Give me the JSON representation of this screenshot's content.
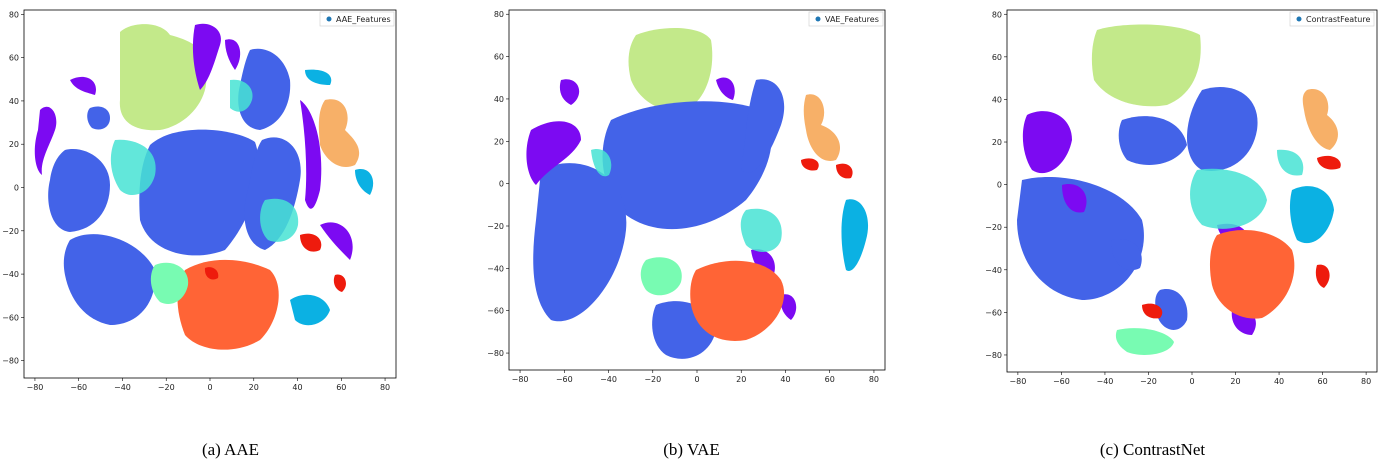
{
  "panels": [
    {
      "caption": "(a) AAE",
      "legend": "AAE_Features",
      "xticks": [
        "−80",
        "−60",
        "−40",
        "−20",
        "0",
        "20",
        "40",
        "60",
        "80"
      ],
      "yticks": [
        "80",
        "60",
        "40",
        "20",
        "0",
        "−20",
        "−40",
        "−60",
        "−80"
      ]
    },
    {
      "caption": "(b) VAE",
      "legend": "VAE_Features",
      "xticks": [
        "−80",
        "−60",
        "−40",
        "−20",
        "0",
        "20",
        "40",
        "60",
        "80"
      ],
      "yticks": [
        "80",
        "60",
        "40",
        "20",
        "0",
        "−20",
        "−40",
        "−60",
        "−80"
      ]
    },
    {
      "caption": "(c) ContrastNet",
      "legend": "ContrastFeature",
      "xticks": [
        "−80",
        "−60",
        "−40",
        "−20",
        "0",
        "20",
        "40",
        "60",
        "80"
      ],
      "yticks": [
        "80",
        "60",
        "40",
        "20",
        "0",
        "−20",
        "−40",
        "−60",
        "−80"
      ]
    }
  ],
  "chart_data": [
    {
      "type": "scatter",
      "title": "",
      "xlabel": "",
      "ylabel": "",
      "xlim": [
        -85,
        85
      ],
      "ylim": [
        -88,
        82
      ],
      "legend": [
        "AAE_Features"
      ],
      "legend_position": "top-right",
      "colors": [
        "#4363e8",
        "#c3e98a",
        "#7c0af2",
        "#47e3d4",
        "#f7b068",
        "#ff6436",
        "#ee1b0d",
        "#78fbb2",
        "#0bb1e3"
      ],
      "clusters": [
        {
          "color": "#c3e98a",
          "x": [
            -40,
            -5
          ],
          "y": [
            38,
            78
          ]
        },
        {
          "color": "#4363e8",
          "x": [
            -35,
            25
          ],
          "y": [
            -30,
            28
          ]
        },
        {
          "color": "#4363e8",
          "x": [
            -70,
            -40
          ],
          "y": [
            -30,
            18
          ]
        },
        {
          "color": "#4363e8",
          "x": [
            -70,
            -25
          ],
          "y": [
            -65,
            -20
          ]
        },
        {
          "color": "#7c0af2",
          "x": [
            -80,
            -45
          ],
          "y": [
            10,
            55
          ]
        },
        {
          "color": "#7c0af2",
          "x": [
            5,
            50
          ],
          "y": [
            25,
            75
          ]
        },
        {
          "color": "#47e3d4",
          "x": [
            -45,
            -20
          ],
          "y": [
            -10,
            20
          ]
        },
        {
          "color": "#f7b068",
          "x": [
            55,
            75
          ],
          "y": [
            10,
            45
          ]
        },
        {
          "color": "#ff6436",
          "x": [
            -15,
            50
          ],
          "y": [
            -82,
            -35
          ]
        },
        {
          "color": "#78fbb2",
          "x": [
            -30,
            -10
          ],
          "y": [
            -65,
            -35
          ]
        },
        {
          "color": "#0bb1e3",
          "x": [
            40,
            62
          ],
          "y": [
            -70,
            -50
          ]
        },
        {
          "color": "#ee1b0d",
          "x": [
            40,
            70
          ],
          "y": [
            -50,
            -30
          ]
        }
      ]
    },
    {
      "type": "scatter",
      "title": "",
      "xlabel": "",
      "ylabel": "",
      "xlim": [
        -85,
        85
      ],
      "ylim": [
        -88,
        82
      ],
      "legend": [
        "VAE_Features"
      ],
      "legend_position": "top-right",
      "colors": [
        "#4363e8",
        "#c3e98a",
        "#7c0af2",
        "#47e3d4",
        "#f7b068",
        "#ff6436",
        "#ee1b0d",
        "#78fbb2",
        "#0bb1e3"
      ],
      "clusters": [
        {
          "color": "#c3e98a",
          "x": [
            -30,
            15
          ],
          "y": [
            48,
            78
          ]
        },
        {
          "color": "#4363e8",
          "x": [
            -55,
            50
          ],
          "y": [
            -60,
            45
          ]
        },
        {
          "color": "#7c0af2",
          "x": [
            -80,
            -35
          ],
          "y": [
            -10,
            45
          ]
        },
        {
          "color": "#47e3d4",
          "x": [
            -60,
            -30
          ],
          "y": [
            -30,
            40
          ]
        },
        {
          "color": "#f7b068",
          "x": [
            58,
            80
          ],
          "y": [
            15,
            50
          ]
        },
        {
          "color": "#ff6436",
          "x": [
            0,
            48
          ],
          "y": [
            -70,
            -35
          ]
        },
        {
          "color": "#78fbb2",
          "x": [
            -30,
            -5
          ],
          "y": [
            -55,
            -35
          ]
        },
        {
          "color": "#0bb1e3",
          "x": [
            60,
            80
          ],
          "y": [
            -50,
            10
          ]
        },
        {
          "color": "#ee1b0d",
          "x": [
            60,
            85
          ],
          "y": [
            5,
            20
          ]
        }
      ]
    },
    {
      "type": "scatter",
      "title": "",
      "xlabel": "",
      "ylabel": "",
      "xlim": [
        -85,
        85
      ],
      "ylim": [
        -88,
        82
      ],
      "legend": [
        "ContrastFeature"
      ],
      "legend_position": "top-right",
      "colors": [
        "#4363e8",
        "#c3e98a",
        "#7c0af2",
        "#47e3d4",
        "#f7b068",
        "#ff6436",
        "#ee1b0d",
        "#78fbb2",
        "#0bb1e3"
      ],
      "clusters": [
        {
          "color": "#c3e98a",
          "x": [
            -45,
            5
          ],
          "y": [
            45,
            80
          ]
        },
        {
          "color": "#4363e8",
          "x": [
            -70,
            50
          ],
          "y": [
            -65,
            50
          ]
        },
        {
          "color": "#7c0af2",
          "x": [
            -70,
            -30
          ],
          "y": [
            -10,
            40
          ]
        },
        {
          "color": "#47e3d4",
          "x": [
            10,
            60
          ],
          "y": [
            -30,
            10
          ]
        },
        {
          "color": "#f7b068",
          "x": [
            60,
            78
          ],
          "y": [
            25,
            55
          ]
        },
        {
          "color": "#ff6436",
          "x": [
            10,
            50
          ],
          "y": [
            -60,
            -25
          ]
        },
        {
          "color": "#78fbb2",
          "x": [
            -20,
            10
          ],
          "y": [
            -78,
            -60
          ]
        },
        {
          "color": "#0bb1e3",
          "x": [
            55,
            80
          ],
          "y": [
            -30,
            10
          ]
        },
        {
          "color": "#ee1b0d",
          "x": [
            60,
            80
          ],
          "y": [
            -50,
            20
          ]
        }
      ]
    }
  ]
}
